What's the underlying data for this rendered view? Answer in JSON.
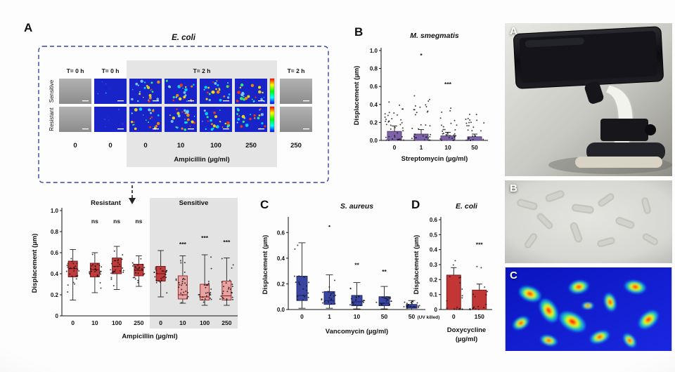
{
  "panelA": {
    "label": "A",
    "title": "E. coli",
    "time_headers": [
      "T= 0 h",
      "T= 0 h",
      "T= 2 h",
      "T= 2 h"
    ],
    "row_labels": [
      "Sensitive",
      "Resistant"
    ],
    "doses": [
      "0",
      "0",
      "0",
      "10",
      "100",
      "250",
      "250"
    ],
    "dose_axis_label": "Ampicillin (µg/ml)",
    "tile_kinds": [
      "phase",
      "flow-idle",
      "flow-active",
      "flow-active",
      "flow-active",
      "flow-active",
      "phase"
    ]
  },
  "chart_data": [
    {
      "id": "ampicillin-boxplot",
      "type": "box",
      "panel_label": "",
      "title": "",
      "ylabel": "Displacement (µm)",
      "xlabel": "Ampicillin (µg/ml)",
      "ylim": [
        0,
        1.0
      ],
      "yticks": [
        "0",
        "0.2",
        "0.4",
        "0.6",
        "0.8",
        "1.0"
      ],
      "ytick_vals": [
        0,
        0.2,
        0.4,
        0.6,
        0.8,
        1.0
      ],
      "groups": [
        {
          "label": "Resistant",
          "shaded": false,
          "categories": [
            "0",
            "10",
            "100",
            "250"
          ],
          "boxes": [
            {
              "low": 0.15,
              "q1": 0.37,
              "median": 0.45,
              "q3": 0.52,
              "high": 0.63,
              "sig": "",
              "sig_y": 0,
              "fill": "#c23b3b",
              "stroke": "#6e1515"
            },
            {
              "low": 0.22,
              "q1": 0.37,
              "median": 0.44,
              "q3": 0.5,
              "high": 0.6,
              "sig": "ns",
              "sig_y": 0.88,
              "fill": "#c23b3b",
              "stroke": "#6e1515"
            },
            {
              "low": 0.25,
              "q1": 0.4,
              "median": 0.47,
              "q3": 0.55,
              "high": 0.66,
              "sig": "ns",
              "sig_y": 0.88,
              "fill": "#c23b3b",
              "stroke": "#6e1515"
            },
            {
              "low": 0.28,
              "q1": 0.38,
              "median": 0.43,
              "q3": 0.49,
              "high": 0.57,
              "sig": "ns",
              "sig_y": 0.88,
              "fill": "#c23b3b",
              "stroke": "#6e1515"
            }
          ]
        },
        {
          "label": "Sensitive",
          "shaded": true,
          "categories": [
            "0",
            "10",
            "100",
            "250"
          ],
          "boxes": [
            {
              "low": 0.18,
              "q1": 0.33,
              "median": 0.4,
              "q3": 0.47,
              "high": 0.62,
              "sig": "",
              "sig_y": 0,
              "fill": "#c23b3b",
              "stroke": "#6e1515"
            },
            {
              "low": 0.12,
              "q1": 0.16,
              "median": 0.2,
              "q3": 0.38,
              "high": 0.57,
              "sig": "***",
              "sig_y": 0.66,
              "fill": "#e9a2a2",
              "stroke": "#8a2525"
            },
            {
              "low": 0.1,
              "q1": 0.15,
              "median": 0.18,
              "q3": 0.3,
              "high": 0.58,
              "sig": "***",
              "sig_y": 0.72,
              "fill": "#e9a2a2",
              "stroke": "#8a2525"
            },
            {
              "low": 0.1,
              "q1": 0.15,
              "median": 0.19,
              "q3": 0.33,
              "high": 0.55,
              "sig": "***",
              "sig_y": 0.68,
              "fill": "#e9a2a2",
              "stroke": "#8a2525"
            }
          ]
        }
      ]
    },
    {
      "id": "smegmatis-bar",
      "type": "bar",
      "panel_label": "B",
      "title": "M. smegmatis",
      "ylabel": "Displacement (µm)",
      "xlabel": "Streptomycin (µg/ml)",
      "ylim": [
        0,
        1.0
      ],
      "yticks": [
        "0.0",
        "0.2",
        "0.4",
        "0.6",
        "0.8",
        "1.0"
      ],
      "ytick_vals": [
        0,
        0.2,
        0.4,
        0.6,
        0.8,
        1.0
      ],
      "categories": [
        "0",
        "1",
        "10",
        "50"
      ],
      "values": [
        0.1,
        0.07,
        0.05,
        0.04
      ],
      "errors": [
        0.06,
        0.05,
        0.04,
        0.03
      ],
      "sig": [
        "",
        "*",
        "***",
        ""
      ],
      "sig_y": [
        0,
        0.92,
        0.6,
        0
      ],
      "point_max": [
        0.44,
        0.5,
        0.42,
        0.3
      ],
      "point_n": [
        40,
        34,
        30,
        26
      ],
      "bar_fill": "#7d63a8",
      "bar_stroke": "#4a3370"
    },
    {
      "id": "aureus-boxplot",
      "type": "box",
      "panel_label": "C",
      "title": "S. aureus",
      "ylabel": "Displacement (µm)",
      "xlabel": "Vancomycin (µg/ml)",
      "ylim": [
        0,
        0.7
      ],
      "yticks": [
        "0.0",
        "0.2",
        "0.4",
        "0.6"
      ],
      "ytick_vals": [
        0,
        0.2,
        0.4,
        0.6
      ],
      "last_cat_note": "(UV killed)",
      "groups": [
        {
          "label": "",
          "shaded": false,
          "categories": [
            "0",
            "1",
            "10",
            "50",
            "50"
          ],
          "boxes": [
            {
              "low": 0.01,
              "q1": 0.07,
              "median": 0.11,
              "q3": 0.26,
              "high": 0.52,
              "sig": "",
              "sig_y": 0,
              "out": [],
              "fill": "#3a46a2",
              "stroke": "#1d2668"
            },
            {
              "low": 0.01,
              "q1": 0.04,
              "median": 0.07,
              "q3": 0.14,
              "high": 0.27,
              "sig": "",
              "sig_y": 0,
              "out": [
                0.65
              ],
              "fill": "#3a46a2",
              "stroke": "#1d2668"
            },
            {
              "low": 0.005,
              "q1": 0.03,
              "median": 0.06,
              "q3": 0.11,
              "high": 0.21,
              "sig": "**",
              "sig_y": 0.33,
              "out": [],
              "fill": "#3a46a2",
              "stroke": "#1d2668"
            },
            {
              "low": 0.005,
              "q1": 0.03,
              "median": 0.05,
              "q3": 0.1,
              "high": 0.18,
              "sig": "**",
              "sig_y": 0.28,
              "out": [],
              "fill": "#3a46a2",
              "stroke": "#1d2668"
            },
            {
              "low": 0.0,
              "q1": 0.01,
              "median": 0.02,
              "q3": 0.04,
              "high": 0.07,
              "sig": "",
              "sig_y": 0,
              "out": [],
              "fill": "#3a46a2",
              "stroke": "#1d2668"
            }
          ]
        }
      ]
    },
    {
      "id": "ecoli-doxycycline-bar",
      "type": "bar",
      "panel_label": "D",
      "title": "E. coli",
      "ylabel": "Displacement (µm)",
      "xlabel": "Doxycycline",
      "xlabel2": "(µg/ml)",
      "ylim": [
        0,
        0.6
      ],
      "yticks": [
        "0",
        "0.1",
        "0.2",
        "0.3",
        "0.4",
        "0.5",
        "0.6"
      ],
      "ytick_vals": [
        0,
        0.1,
        0.2,
        0.3,
        0.4,
        0.5,
        0.6
      ],
      "categories": [
        "0",
        "150"
      ],
      "values": [
        0.23,
        0.13
      ],
      "errors": [
        0.05,
        0.04
      ],
      "sig": [
        "",
        "***"
      ],
      "sig_y": [
        0,
        0.42
      ],
      "point_max": [
        0.34,
        0.3
      ],
      "point_n": [
        20,
        18
      ],
      "bar_fill": "#c33636",
      "bar_stroke": "#6e1515"
    }
  ],
  "photos": {
    "a_label": "A",
    "b_label": "B",
    "c_label": "C"
  }
}
